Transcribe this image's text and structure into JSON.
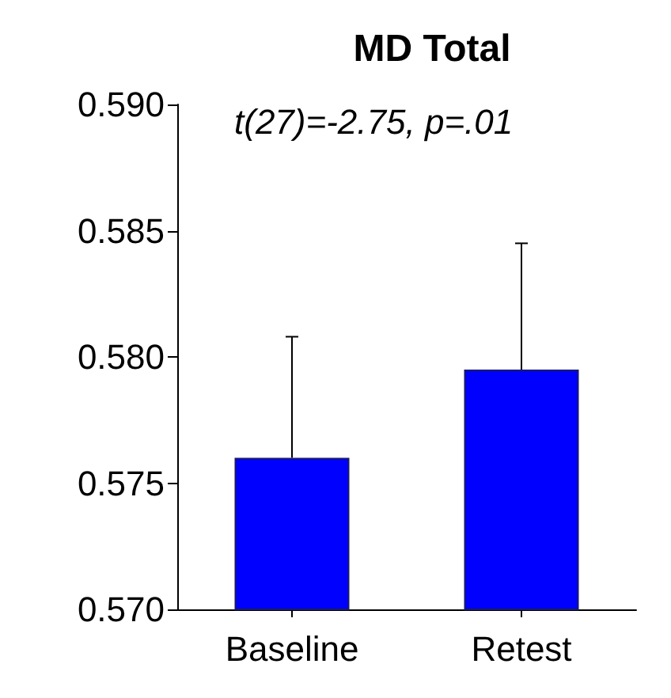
{
  "chart_data": {
    "type": "bar",
    "title": "MD Total",
    "annotations": [
      "t(27)=-2.75, p=.01"
    ],
    "categories": [
      "Baseline",
      "Retest"
    ],
    "values": [
      0.576,
      0.5795
    ],
    "errors": [
      [
        0.576,
        0.5808
      ],
      [
        0.5795,
        0.5845
      ]
    ],
    "color": "#0000ff",
    "ylim": [
      0.57,
      0.59
    ],
    "yticks": [
      {
        "value": 0.57,
        "label": "0.570"
      },
      {
        "value": 0.575,
        "label": "0.575"
      },
      {
        "value": 0.58,
        "label": "0.580"
      },
      {
        "value": 0.585,
        "label": "0.585"
      },
      {
        "value": 0.59,
        "label": "0.590"
      }
    ],
    "grid": false
  }
}
